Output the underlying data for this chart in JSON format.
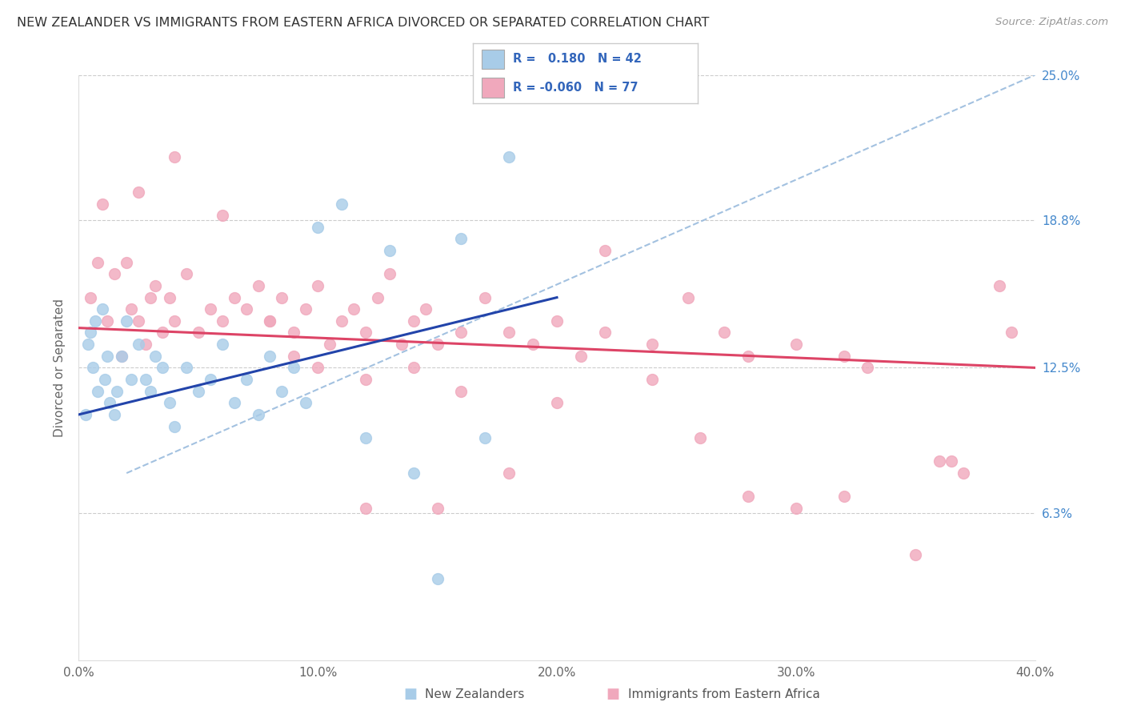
{
  "title": "NEW ZEALANDER VS IMMIGRANTS FROM EASTERN AFRICA DIVORCED OR SEPARATED CORRELATION CHART",
  "source": "Source: ZipAtlas.com",
  "ylabel": "Divorced or Separated",
  "x_min": 0.0,
  "x_max": 40.0,
  "y_min": 0.0,
  "y_max": 25.0,
  "y_ticks": [
    6.3,
    12.5,
    18.8,
    25.0
  ],
  "x_ticks": [
    0.0,
    10.0,
    20.0,
    30.0,
    40.0
  ],
  "legend_label1": "New Zealanders",
  "legend_label2": "Immigrants from Eastern Africa",
  "color_blue_fill": "#A8CCE8",
  "color_pink_fill": "#F0A8BC",
  "color_blue_line": "#2244AA",
  "color_pink_line": "#DD4466",
  "color_gray_dash": "#88AACCAA",
  "nz_x": [
    0.3,
    0.4,
    0.5,
    0.6,
    0.7,
    0.8,
    1.0,
    1.1,
    1.2,
    1.3,
    1.5,
    1.6,
    1.8,
    2.0,
    2.2,
    2.5,
    2.8,
    3.0,
    3.2,
    3.5,
    3.8,
    4.0,
    4.5,
    5.0,
    5.5,
    6.0,
    6.5,
    7.0,
    7.5,
    8.0,
    8.5,
    9.0,
    9.5,
    10.0,
    11.0,
    12.0,
    13.0,
    14.0,
    15.0,
    16.0,
    17.0,
    18.0
  ],
  "nz_y": [
    10.5,
    13.5,
    14.0,
    12.5,
    14.5,
    11.5,
    15.0,
    12.0,
    13.0,
    11.0,
    10.5,
    11.5,
    13.0,
    14.5,
    12.0,
    13.5,
    12.0,
    11.5,
    13.0,
    12.5,
    11.0,
    10.0,
    12.5,
    11.5,
    12.0,
    13.5,
    11.0,
    12.0,
    10.5,
    13.0,
    11.5,
    12.5,
    11.0,
    18.5,
    19.5,
    9.5,
    17.5,
    8.0,
    3.5,
    18.0,
    9.5,
    21.5
  ],
  "ea_x": [
    0.5,
    0.8,
    1.0,
    1.2,
    1.5,
    1.8,
    2.0,
    2.2,
    2.5,
    2.8,
    3.0,
    3.2,
    3.5,
    3.8,
    4.0,
    4.5,
    5.0,
    5.5,
    6.0,
    6.5,
    7.0,
    7.5,
    8.0,
    8.5,
    9.0,
    9.5,
    10.0,
    10.5,
    11.0,
    11.5,
    12.0,
    12.5,
    13.0,
    13.5,
    14.0,
    14.5,
    15.0,
    16.0,
    17.0,
    18.0,
    19.0,
    20.0,
    21.0,
    22.0,
    24.0,
    25.5,
    27.0,
    28.0,
    30.0,
    32.0,
    33.0,
    35.0,
    36.5,
    38.5,
    39.0,
    2.5,
    4.0,
    6.0,
    8.0,
    10.0,
    12.0,
    14.0,
    16.0,
    20.0,
    24.0,
    28.0,
    32.0,
    36.0,
    9.0,
    12.0,
    15.0,
    18.0,
    22.0,
    26.0,
    30.0,
    37.0
  ],
  "ea_y": [
    15.5,
    17.0,
    19.5,
    14.5,
    16.5,
    13.0,
    17.0,
    15.0,
    14.5,
    13.5,
    15.5,
    16.0,
    14.0,
    15.5,
    14.5,
    16.5,
    14.0,
    15.0,
    14.5,
    15.5,
    15.0,
    16.0,
    14.5,
    15.5,
    14.0,
    15.0,
    16.0,
    13.5,
    14.5,
    15.0,
    14.0,
    15.5,
    16.5,
    13.5,
    14.5,
    15.0,
    13.5,
    14.0,
    15.5,
    14.0,
    13.5,
    14.5,
    13.0,
    14.0,
    13.5,
    15.5,
    14.0,
    13.0,
    13.5,
    13.0,
    12.5,
    4.5,
    8.5,
    16.0,
    14.0,
    20.0,
    21.5,
    19.0,
    14.5,
    12.5,
    12.0,
    12.5,
    11.5,
    11.0,
    12.0,
    7.0,
    7.0,
    8.5,
    13.0,
    6.5,
    6.5,
    8.0,
    17.5,
    9.5,
    6.5,
    8.0
  ],
  "nz_trend_x0": 0.0,
  "nz_trend_x1": 20.0,
  "nz_trend_y0": 10.5,
  "nz_trend_y1": 15.5,
  "ea_trend_x0": 0.0,
  "ea_trend_x1": 40.0,
  "ea_trend_y0": 14.2,
  "ea_trend_y1": 12.5,
  "dash_x0": 2.0,
  "dash_x1": 40.0,
  "dash_y0": 8.0,
  "dash_y1": 25.0
}
